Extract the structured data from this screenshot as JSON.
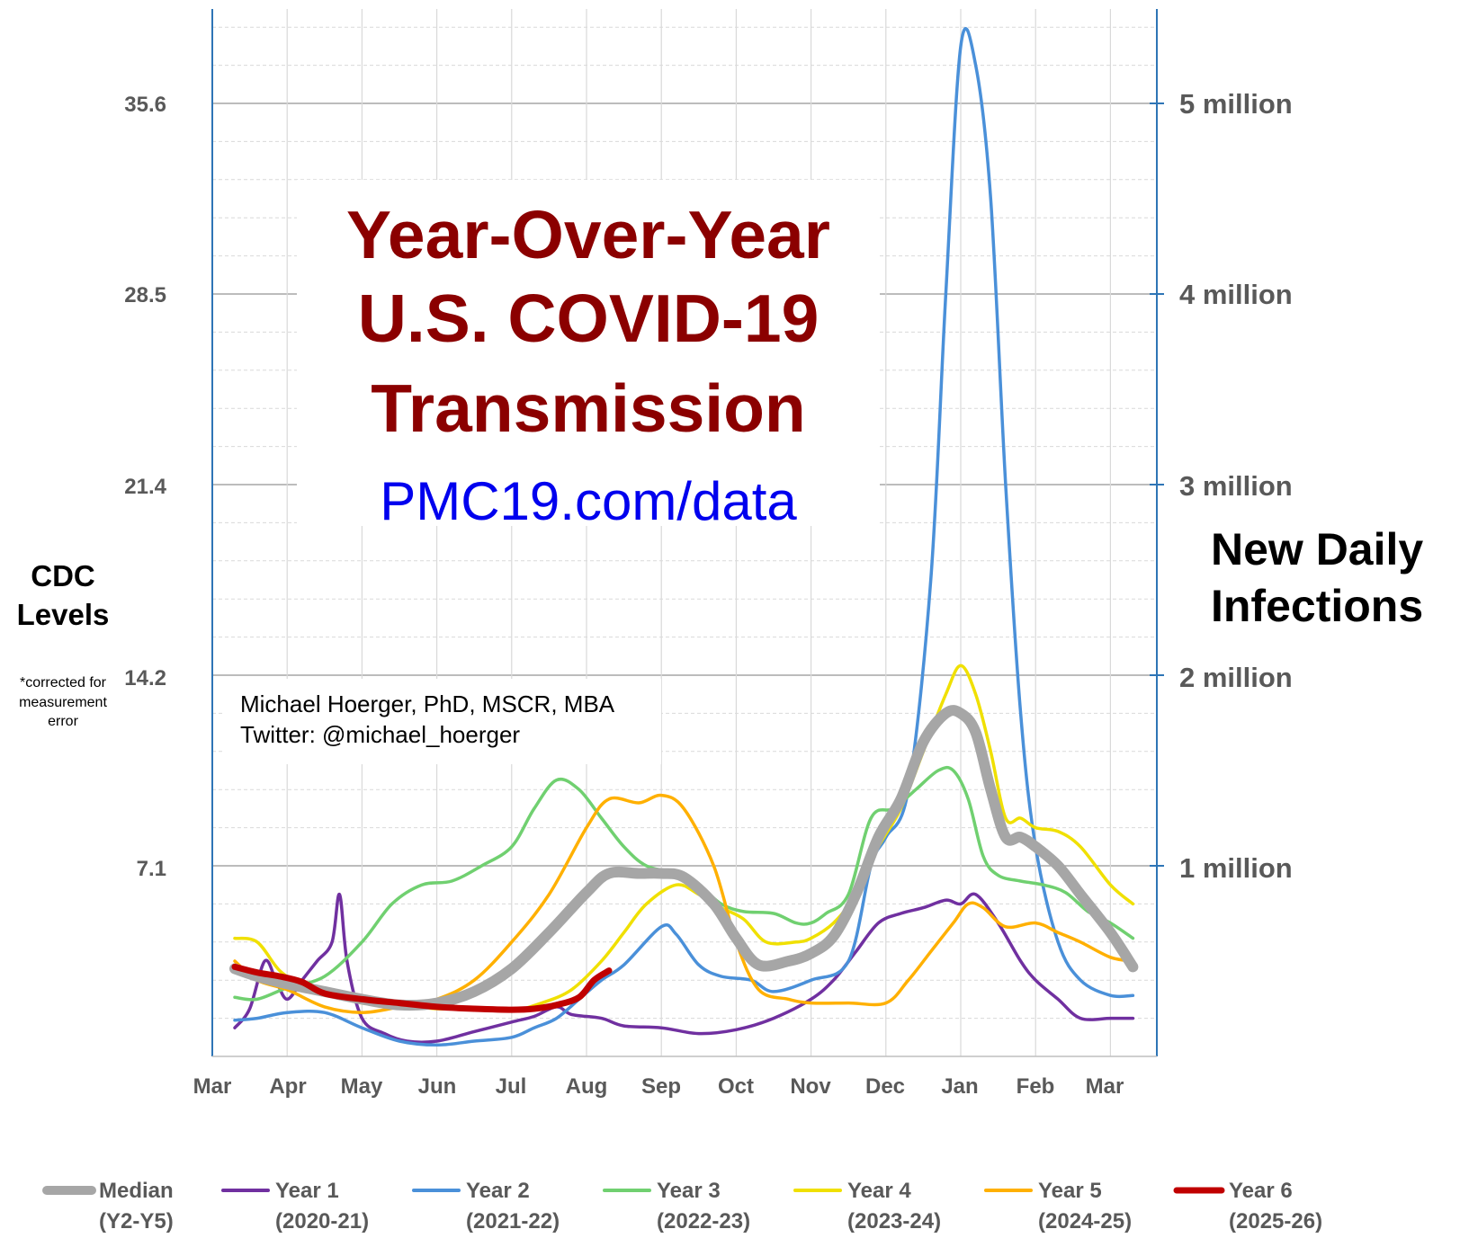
{
  "chart_data": {
    "type": "line",
    "title": [
      "Year-Over-Year",
      "U.S. COVID-19",
      "Transmission"
    ],
    "url": "PMC19.com/data",
    "author": [
      "Michael Hoerger, PhD, MSCR, MBA",
      "Twitter: @michael_hoerger"
    ],
    "ylabel_left": [
      "CDC",
      "Levels"
    ],
    "ylabel_left_note": [
      "*corrected for",
      "measurement",
      "error"
    ],
    "ylabel_right": [
      "New Daily",
      "Infections"
    ],
    "x_ticks": [
      "Mar",
      "Apr",
      "May",
      "Jun",
      "Jul",
      "Aug",
      "Sep",
      "Oct",
      "Nov",
      "Dec",
      "Jan",
      "Feb",
      "Mar"
    ],
    "y_left_ticks": [
      "7.1",
      "14.2",
      "21.4",
      "28.5",
      "35.6"
    ],
    "y_right_ticks": [
      "1 million",
      "2 million",
      "3 million",
      "4 million",
      "5 million"
    ],
    "y_right_values": [
      1000000,
      2000000,
      3000000,
      4000000,
      5000000
    ],
    "ylim_left": [
      0,
      39
    ],
    "ylim_right": [
      0,
      5500000
    ],
    "grid": true,
    "legend_position": "bottom",
    "x_unit": "months since March 1",
    "series": [
      {
        "name": "Year 1",
        "sub": "(2020-21)",
        "color": "#7030a0",
        "width": 3.5,
        "points": [
          [
            0.3,
            150000
          ],
          [
            0.5,
            250000
          ],
          [
            0.7,
            500000
          ],
          [
            0.85,
            400000
          ],
          [
            1.0,
            300000
          ],
          [
            1.2,
            400000
          ],
          [
            1.4,
            500000
          ],
          [
            1.6,
            600000
          ],
          [
            1.7,
            850000
          ],
          [
            1.8,
            500000
          ],
          [
            2.0,
            200000
          ],
          [
            2.3,
            120000
          ],
          [
            2.6,
            80000
          ],
          [
            3.0,
            80000
          ],
          [
            3.5,
            130000
          ],
          [
            4.0,
            180000
          ],
          [
            4.3,
            210000
          ],
          [
            4.6,
            260000
          ],
          [
            4.8,
            220000
          ],
          [
            5.2,
            200000
          ],
          [
            5.5,
            160000
          ],
          [
            6.0,
            150000
          ],
          [
            6.5,
            120000
          ],
          [
            7.0,
            140000
          ],
          [
            7.5,
            200000
          ],
          [
            8.0,
            300000
          ],
          [
            8.3,
            400000
          ],
          [
            8.6,
            550000
          ],
          [
            8.9,
            700000
          ],
          [
            9.2,
            750000
          ],
          [
            9.5,
            780000
          ],
          [
            9.8,
            820000
          ],
          [
            10.0,
            800000
          ],
          [
            10.2,
            850000
          ],
          [
            10.5,
            700000
          ],
          [
            10.8,
            500000
          ],
          [
            11.0,
            400000
          ],
          [
            11.3,
            300000
          ],
          [
            11.6,
            200000
          ],
          [
            12.0,
            200000
          ],
          [
            12.3,
            200000
          ]
        ]
      },
      {
        "name": "Year 2",
        "sub": "(2021-22)",
        "color": "#4a90d9",
        "width": 3.5,
        "points": [
          [
            0.3,
            190000
          ],
          [
            0.6,
            200000
          ],
          [
            1.0,
            230000
          ],
          [
            1.5,
            230000
          ],
          [
            2.0,
            150000
          ],
          [
            2.5,
            80000
          ],
          [
            3.0,
            60000
          ],
          [
            3.5,
            80000
          ],
          [
            4.0,
            100000
          ],
          [
            4.3,
            150000
          ],
          [
            4.6,
            200000
          ],
          [
            4.9,
            300000
          ],
          [
            5.2,
            400000
          ],
          [
            5.5,
            480000
          ],
          [
            6.0,
            680000
          ],
          [
            6.2,
            640000
          ],
          [
            6.5,
            480000
          ],
          [
            6.8,
            420000
          ],
          [
            7.2,
            400000
          ],
          [
            7.5,
            340000
          ],
          [
            8.0,
            400000
          ],
          [
            8.5,
            500000
          ],
          [
            8.8,
            1000000
          ],
          [
            9.0,
            1150000
          ],
          [
            9.3,
            1400000
          ],
          [
            9.6,
            2500000
          ],
          [
            9.8,
            4000000
          ],
          [
            10.0,
            5300000
          ],
          [
            10.2,
            5200000
          ],
          [
            10.4,
            4500000
          ],
          [
            10.6,
            3000000
          ],
          [
            10.8,
            1800000
          ],
          [
            11.0,
            1100000
          ],
          [
            11.3,
            600000
          ],
          [
            11.6,
            400000
          ],
          [
            12.0,
            320000
          ],
          [
            12.3,
            320000
          ]
        ]
      },
      {
        "name": "Year 3",
        "sub": "(2022-23)",
        "color": "#70d070",
        "width": 3.5,
        "points": [
          [
            0.3,
            310000
          ],
          [
            0.6,
            300000
          ],
          [
            1.0,
            360000
          ],
          [
            1.5,
            420000
          ],
          [
            2.0,
            600000
          ],
          [
            2.4,
            800000
          ],
          [
            2.8,
            900000
          ],
          [
            3.2,
            920000
          ],
          [
            3.6,
            1000000
          ],
          [
            4.0,
            1100000
          ],
          [
            4.3,
            1300000
          ],
          [
            4.6,
            1450000
          ],
          [
            4.9,
            1400000
          ],
          [
            5.2,
            1250000
          ],
          [
            5.5,
            1100000
          ],
          [
            5.8,
            1000000
          ],
          [
            6.2,
            960000
          ],
          [
            6.5,
            900000
          ],
          [
            6.8,
            800000
          ],
          [
            7.1,
            760000
          ],
          [
            7.5,
            750000
          ],
          [
            7.8,
            700000
          ],
          [
            8.0,
            700000
          ],
          [
            8.2,
            750000
          ],
          [
            8.5,
            850000
          ],
          [
            8.8,
            1250000
          ],
          [
            9.1,
            1300000
          ],
          [
            9.4,
            1400000
          ],
          [
            9.7,
            1500000
          ],
          [
            9.9,
            1500000
          ],
          [
            10.1,
            1350000
          ],
          [
            10.3,
            1050000
          ],
          [
            10.5,
            950000
          ],
          [
            10.8,
            920000
          ],
          [
            11.1,
            900000
          ],
          [
            11.4,
            860000
          ],
          [
            11.7,
            760000
          ],
          [
            12.0,
            700000
          ],
          [
            12.3,
            620000
          ]
        ]
      },
      {
        "name": "Year 4",
        "sub": "(2023-24)",
        "color": "#f0e000",
        "width": 3.5,
        "points": [
          [
            0.3,
            620000
          ],
          [
            0.6,
            600000
          ],
          [
            0.9,
            450000
          ],
          [
            1.2,
            380000
          ],
          [
            1.6,
            330000
          ],
          [
            2.0,
            280000
          ],
          [
            2.5,
            270000
          ],
          [
            3.0,
            250000
          ],
          [
            3.5,
            250000
          ],
          [
            4.0,
            240000
          ],
          [
            4.4,
            280000
          ],
          [
            4.8,
            350000
          ],
          [
            5.2,
            500000
          ],
          [
            5.5,
            650000
          ],
          [
            5.8,
            800000
          ],
          [
            6.2,
            900000
          ],
          [
            6.5,
            850000
          ],
          [
            6.8,
            780000
          ],
          [
            7.1,
            720000
          ],
          [
            7.4,
            600000
          ],
          [
            7.8,
            600000
          ],
          [
            8.0,
            620000
          ],
          [
            8.3,
            700000
          ],
          [
            8.6,
            850000
          ],
          [
            8.9,
            1100000
          ],
          [
            9.2,
            1300000
          ],
          [
            9.5,
            1600000
          ],
          [
            9.8,
            1900000
          ],
          [
            10.0,
            2050000
          ],
          [
            10.2,
            1900000
          ],
          [
            10.4,
            1600000
          ],
          [
            10.6,
            1250000
          ],
          [
            10.8,
            1250000
          ],
          [
            11.0,
            1200000
          ],
          [
            11.3,
            1180000
          ],
          [
            11.6,
            1100000
          ],
          [
            12.0,
            900000
          ],
          [
            12.3,
            800000
          ]
        ]
      },
      {
        "name": "Year 5",
        "sub": "(2024-25)",
        "color": "#ffb000",
        "width": 3.5,
        "points": [
          [
            0.3,
            500000
          ],
          [
            0.6,
            400000
          ],
          [
            1.0,
            350000
          ],
          [
            1.5,
            260000
          ],
          [
            2.0,
            230000
          ],
          [
            2.5,
            260000
          ],
          [
            3.0,
            300000
          ],
          [
            3.5,
            400000
          ],
          [
            4.0,
            600000
          ],
          [
            4.5,
            850000
          ],
          [
            5.0,
            1200000
          ],
          [
            5.3,
            1350000
          ],
          [
            5.7,
            1330000
          ],
          [
            6.0,
            1370000
          ],
          [
            6.3,
            1300000
          ],
          [
            6.7,
            1000000
          ],
          [
            7.0,
            600000
          ],
          [
            7.3,
            350000
          ],
          [
            7.7,
            300000
          ],
          [
            8.0,
            280000
          ],
          [
            8.5,
            280000
          ],
          [
            9.0,
            280000
          ],
          [
            9.3,
            400000
          ],
          [
            9.6,
            550000
          ],
          [
            9.9,
            700000
          ],
          [
            10.1,
            800000
          ],
          [
            10.3,
            780000
          ],
          [
            10.6,
            680000
          ],
          [
            11.0,
            700000
          ],
          [
            11.3,
            650000
          ],
          [
            11.6,
            600000
          ],
          [
            12.0,
            520000
          ],
          [
            12.3,
            500000
          ]
        ]
      },
      {
        "name": "Median",
        "sub": "(Y2-Y5)",
        "color": "#a6a6a6",
        "width": 12,
        "points": [
          [
            0.3,
            460000
          ],
          [
            0.6,
            420000
          ],
          [
            1.0,
            380000
          ],
          [
            1.5,
            340000
          ],
          [
            2.0,
            300000
          ],
          [
            2.5,
            270000
          ],
          [
            3.0,
            280000
          ],
          [
            3.5,
            340000
          ],
          [
            4.0,
            460000
          ],
          [
            4.5,
            650000
          ],
          [
            5.0,
            860000
          ],
          [
            5.3,
            960000
          ],
          [
            5.7,
            960000
          ],
          [
            6.0,
            960000
          ],
          [
            6.3,
            940000
          ],
          [
            6.7,
            800000
          ],
          [
            7.0,
            620000
          ],
          [
            7.3,
            480000
          ],
          [
            7.7,
            500000
          ],
          [
            8.0,
            540000
          ],
          [
            8.3,
            630000
          ],
          [
            8.6,
            850000
          ],
          [
            8.9,
            1150000
          ],
          [
            9.2,
            1350000
          ],
          [
            9.5,
            1650000
          ],
          [
            9.8,
            1800000
          ],
          [
            10.0,
            1800000
          ],
          [
            10.2,
            1700000
          ],
          [
            10.4,
            1400000
          ],
          [
            10.6,
            1150000
          ],
          [
            10.8,
            1150000
          ],
          [
            11.0,
            1100000
          ],
          [
            11.3,
            1000000
          ],
          [
            11.6,
            850000
          ],
          [
            12.0,
            650000
          ],
          [
            12.3,
            470000
          ]
        ]
      },
      {
        "name": "Year 6",
        "sub": "(2025-26)",
        "color": "#c00000",
        "width": 7,
        "points": [
          [
            0.3,
            470000
          ],
          [
            0.6,
            440000
          ],
          [
            0.9,
            420000
          ],
          [
            1.2,
            390000
          ],
          [
            1.5,
            330000
          ],
          [
            2.0,
            300000
          ],
          [
            2.5,
            280000
          ],
          [
            3.0,
            260000
          ],
          [
            3.5,
            250000
          ],
          [
            4.0,
            245000
          ],
          [
            4.3,
            250000
          ],
          [
            4.6,
            270000
          ],
          [
            4.9,
            310000
          ],
          [
            5.1,
            400000
          ],
          [
            5.3,
            450000
          ]
        ]
      }
    ]
  }
}
